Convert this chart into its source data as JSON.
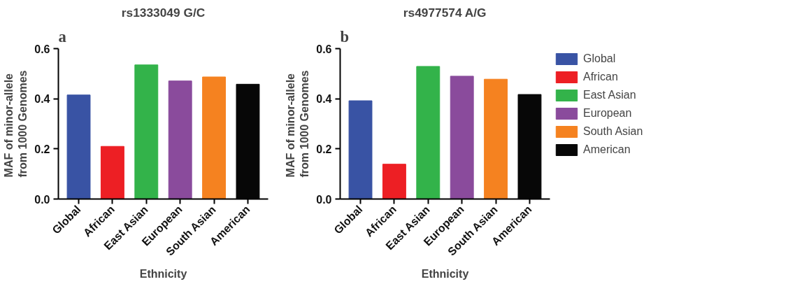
{
  "chart_data": [
    {
      "type": "bar",
      "title": "rs1333049 G/C",
      "xlabel": "Ethnicity",
      "ylabel": "MAF of  minor-allele\nfrom 1000 Genomes",
      "annotations": [
        "a"
      ],
      "categories": [
        "Global",
        "African",
        "East Asian",
        "European",
        "South Asian",
        "American"
      ],
      "values": [
        0.415,
        0.21,
        0.535,
        0.471,
        0.487,
        0.458
      ],
      "colors": [
        "#3953a4",
        "#ed1f24",
        "#33b34a",
        "#8a4b9c",
        "#f58220",
        "#070707"
      ],
      "ylim": [
        0,
        0.6
      ],
      "yticks": [
        {
          "value": 0,
          "label": "0.0"
        },
        0.2,
        0.4,
        0.6
      ],
      "grid": false,
      "legend": false
    },
    {
      "type": "bar",
      "title": "rs4977574 A/G",
      "xlabel": "Ethnicity",
      "ylabel": "MAF of  minor-allele\nfrom 1000 Genomes",
      "annotations": [
        "b"
      ],
      "categories": [
        "Global",
        "African",
        "East Asian",
        "European",
        "South Asian",
        "American"
      ],
      "series": [
        {
          "name": "Global",
          "color": "#3953a4",
          "values": [
            0.392,
            null,
            null,
            null,
            null,
            null
          ]
        },
        {
          "name": "African",
          "color": "#ed1f24",
          "values": [
            null,
            0.139,
            null,
            null,
            null,
            null
          ]
        },
        {
          "name": "East Asian",
          "color": "#33b34a",
          "values": [
            null,
            null,
            0.529,
            null,
            null,
            null
          ]
        },
        {
          "name": "European",
          "color": "#8a4b9c",
          "values": [
            null,
            null,
            null,
            0.49,
            null,
            null
          ]
        },
        {
          "name": "South Asian",
          "color": "#f58220",
          "values": [
            null,
            null,
            null,
            null,
            0.478,
            null
          ]
        },
        {
          "name": "American",
          "color": "#070707",
          "values": [
            null,
            null,
            null,
            null,
            null,
            0.417
          ]
        }
      ],
      "ylim": [
        0,
        0.6
      ],
      "yticks": [
        {
          "value": 0,
          "label": "0.0"
        },
        0.2,
        0.4,
        0.6
      ],
      "grid": false,
      "legend": "right"
    }
  ]
}
